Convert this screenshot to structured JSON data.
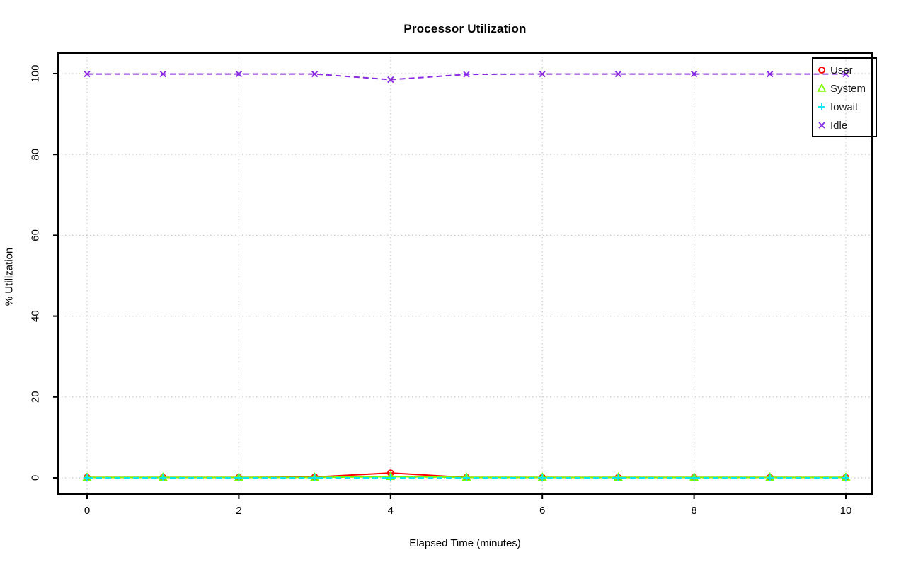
{
  "page": {
    "background": "#ffffff",
    "text_color": "#000000"
  },
  "chart_data": {
    "type": "line",
    "title": "Processor Utilization",
    "xlabel": "Elapsed Time (minutes)",
    "ylabel": "% Utilization",
    "x": [
      0,
      1,
      2,
      3,
      4,
      5,
      6,
      7,
      8,
      9,
      10
    ],
    "xticks": [
      0,
      2,
      4,
      6,
      8,
      10
    ],
    "yticks": [
      0,
      20,
      40,
      60,
      80,
      100
    ],
    "xlim": [
      0,
      10
    ],
    "ylim": [
      0,
      100
    ],
    "grid": "dotted gray gridlines at labeled ticks, both axes",
    "legend_position": "top-right",
    "axis_color": "#000000",
    "grid_color": "#c8c8c8",
    "series": [
      {
        "name": "User",
        "color": "#ff0000",
        "marker": "circle",
        "line": "solid",
        "values": [
          0.1,
          0.1,
          0.1,
          0.2,
          1.2,
          0.1,
          0.1,
          0.1,
          0.1,
          0.1,
          0.1
        ]
      },
      {
        "name": "System",
        "color": "#7cfc00",
        "marker": "triangle",
        "line": "solid",
        "values": [
          0.1,
          0.1,
          0.1,
          0.1,
          0.3,
          0.1,
          0.1,
          0.1,
          0.1,
          0.1,
          0.1
        ]
      },
      {
        "name": "Iowait",
        "color": "#00e5ee",
        "marker": "plus",
        "line": "dashed",
        "values": [
          0,
          0,
          0,
          0,
          0,
          0,
          0,
          0,
          0,
          0,
          0
        ]
      },
      {
        "name": "Idle",
        "color": "#8a2be2",
        "marker": "x",
        "line": "dashed",
        "values": [
          99.9,
          99.9,
          99.9,
          99.9,
          98.5,
          99.8,
          99.9,
          99.9,
          99.9,
          99.9,
          99.9
        ]
      }
    ]
  }
}
